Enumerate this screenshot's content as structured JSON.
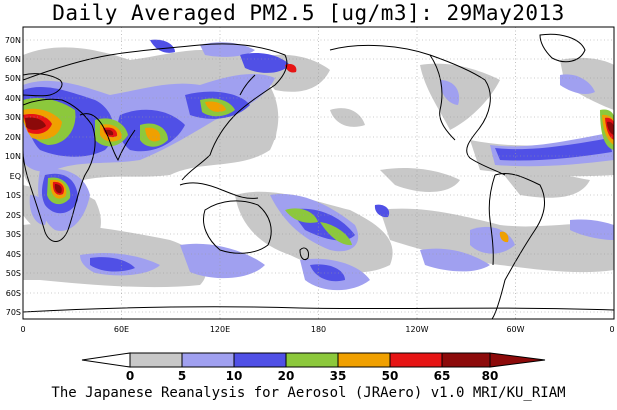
{
  "title": "Daily Averaged PM2.5 [ug/m3]: 29May2013",
  "footer": "The Japanese Reanalysis for Aerosol (JRAero) v1.0 MRI/KU_RIAM",
  "lat_labels": [
    "70N",
    "60N",
    "50N",
    "40N",
    "30N",
    "20N",
    "10N",
    "EQ",
    "10S",
    "20S",
    "30S",
    "40S",
    "50S",
    "60S",
    "70S"
  ],
  "lon_labels": [
    "0",
    "60E",
    "120E",
    "180",
    "120W",
    "60W",
    "0"
  ],
  "colorbar": {
    "labels": [
      "0",
      "5",
      "10",
      "20",
      "35",
      "50",
      "65",
      "80"
    ],
    "colors": [
      "#ffffff",
      "#c8c8c8",
      "#a0a0f0",
      "#5050e6",
      "#8cc83c",
      "#f0a000",
      "#e61414",
      "#8c0a0a"
    ]
  },
  "pm25_colors": {
    "5-10": "#c8c8c8",
    "10-20": "#a0a0f0",
    "20-35": "#5050e6",
    "35-50": "#8cc83c",
    "50-65": "#f0a000",
    "65-80": "#e61414",
    "80+": "#8c0a0a"
  }
}
